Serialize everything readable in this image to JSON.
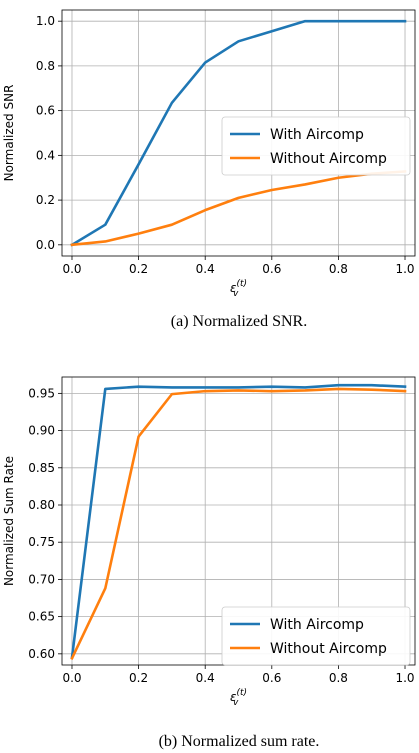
{
  "chart_data": [
    {
      "type": "line",
      "caption": "(a) Normalized SNR.",
      "xlabel_base": "ε",
      "xlabel_sub": "v",
      "xlabel_sup": "(t)",
      "ylabel": "Normalized SNR",
      "xlim": [
        -0.03,
        1.03
      ],
      "ylim": [
        -0.05,
        1.05
      ],
      "x_ticks": [
        0.0,
        0.2,
        0.4,
        0.6,
        0.8,
        1.0
      ],
      "x_tick_labels": [
        "0.0",
        "0.2",
        "0.4",
        "0.6",
        "0.8",
        "1.0"
      ],
      "y_ticks": [
        0.0,
        0.2,
        0.4,
        0.6,
        0.8,
        1.0
      ],
      "y_tick_labels": [
        "0.0",
        "0.2",
        "0.4",
        "0.6",
        "0.8",
        "1.0"
      ],
      "grid": true,
      "legend_position": "center-right",
      "x": [
        0.0,
        0.1,
        0.2,
        0.3,
        0.4,
        0.5,
        0.6,
        0.7,
        0.8,
        0.9,
        1.0
      ],
      "series": [
        {
          "name": "With Aircomp",
          "color": "#1f77b4",
          "values": [
            0.0,
            0.09,
            0.36,
            0.635,
            0.815,
            0.91,
            0.955,
            1.0,
            1.0,
            1.0,
            1.0
          ]
        },
        {
          "name": "Without Aircomp",
          "color": "#ff7f0e",
          "values": [
            0.0,
            0.015,
            0.05,
            0.09,
            0.155,
            0.21,
            0.245,
            0.27,
            0.3,
            0.318,
            0.328
          ]
        }
      ]
    },
    {
      "type": "line",
      "caption": "(b) Normalized sum rate.",
      "xlabel_base": "ε",
      "xlabel_sub": "v",
      "xlabel_sup": "(t)",
      "ylabel": "Normalized Sum Rate",
      "xlim": [
        -0.03,
        1.03
      ],
      "ylim": [
        0.585,
        0.972
      ],
      "x_ticks": [
        0.0,
        0.2,
        0.4,
        0.6,
        0.8,
        1.0
      ],
      "x_tick_labels": [
        "0.0",
        "0.2",
        "0.4",
        "0.6",
        "0.8",
        "1.0"
      ],
      "y_ticks": [
        0.6,
        0.65,
        0.7,
        0.75,
        0.8,
        0.85,
        0.9,
        0.95
      ],
      "y_tick_labels": [
        "0.60",
        "0.65",
        "0.70",
        "0.75",
        "0.80",
        "0.85",
        "0.90",
        "0.95"
      ],
      "grid": true,
      "legend_position": "bottom-right",
      "x": [
        0.0,
        0.1,
        0.2,
        0.3,
        0.4,
        0.5,
        0.6,
        0.7,
        0.8,
        0.9,
        1.0
      ],
      "series": [
        {
          "name": "With Aircomp",
          "color": "#1f77b4",
          "values": [
            0.595,
            0.956,
            0.959,
            0.958,
            0.958,
            0.958,
            0.959,
            0.958,
            0.961,
            0.961,
            0.959
          ]
        },
        {
          "name": "Without Aircomp",
          "color": "#ff7f0e",
          "values": [
            0.594,
            0.688,
            0.892,
            0.949,
            0.953,
            0.954,
            0.953,
            0.954,
            0.956,
            0.955,
            0.953
          ]
        }
      ]
    }
  ]
}
